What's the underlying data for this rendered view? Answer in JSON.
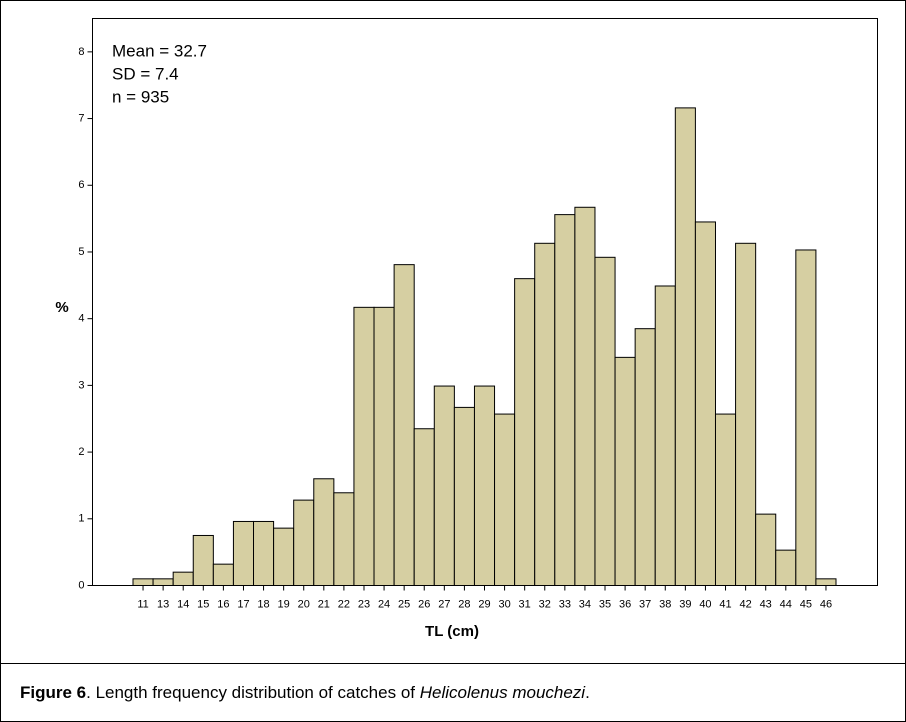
{
  "chart_data": {
    "type": "bar",
    "annotations": [
      "Mean = 32.7",
      "SD = 7.4",
      "n = 935"
    ],
    "xlabel": "TL (cm)",
    "ylabel": "%",
    "categories": [
      "11",
      "13",
      "14",
      "15",
      "16",
      "17",
      "18",
      "19",
      "20",
      "21",
      "22",
      "23",
      "24",
      "25",
      "26",
      "27",
      "28",
      "29",
      "30",
      "31",
      "32",
      "33",
      "34",
      "35",
      "36",
      "37",
      "38",
      "39",
      "40",
      "41",
      "42",
      "43",
      "44",
      "45",
      "46"
    ],
    "values": [
      0.1,
      0.1,
      0.2,
      0.75,
      0.32,
      0.96,
      0.96,
      0.86,
      1.28,
      1.6,
      1.39,
      4.17,
      4.17,
      4.81,
      2.35,
      2.99,
      2.67,
      2.99,
      2.57,
      4.6,
      5.13,
      5.56,
      5.67,
      4.92,
      3.42,
      3.85,
      4.49,
      7.16,
      5.45,
      2.57,
      5.13,
      1.07,
      0.53,
      5.03,
      0.1
    ],
    "color": "#d6cfa2",
    "ylim": [
      0,
      8.5
    ],
    "yticks": [
      0,
      1,
      2,
      3,
      4,
      5,
      6,
      7,
      8
    ],
    "grid": false
  },
  "caption": {
    "label": "Figure 6",
    "text": ". Length frequency distribution of catches of ",
    "species": "Helicolenus mouchezi",
    "end": "."
  }
}
